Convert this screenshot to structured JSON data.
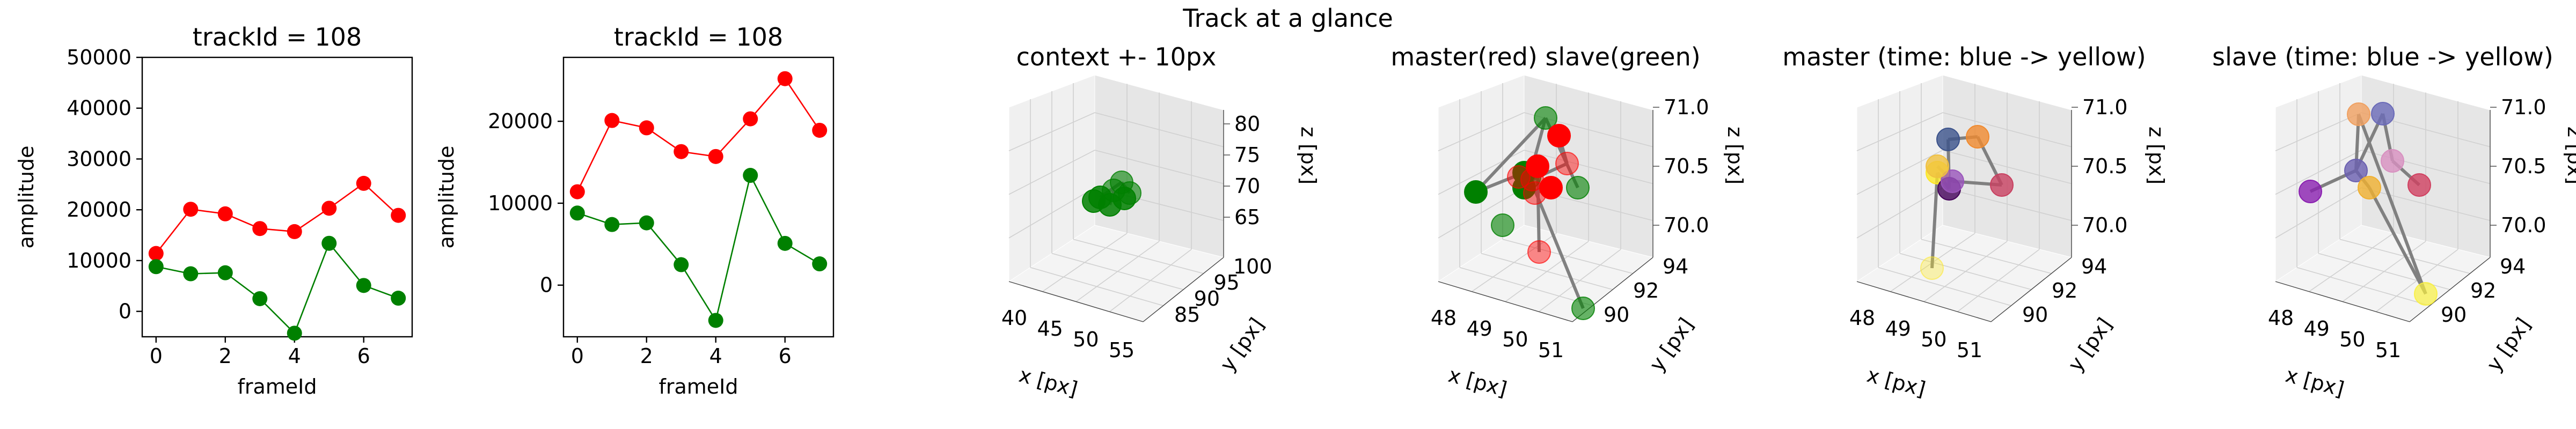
{
  "suptitle": "Track at a glance",
  "chart_data": [
    {
      "type": "line",
      "title": "trackId = 108",
      "xlabel": "frameId",
      "ylabel": "amplitude",
      "x": [
        0,
        1,
        2,
        3,
        4,
        5,
        6,
        7
      ],
      "xlim": [
        -0.4,
        7.4
      ],
      "ylim": [
        -5000,
        50000
      ],
      "xticks": [
        0,
        2,
        4,
        6
      ],
      "yticks": [
        0,
        10000,
        20000,
        30000,
        40000,
        50000
      ],
      "series": [
        {
          "color": "#ff0000",
          "values": [
            11400,
            20100,
            19200,
            16300,
            15700,
            20300,
            25200,
            18900
          ]
        },
        {
          "color": "#008000",
          "values": [
            8800,
            7400,
            7600,
            2500,
            -4300,
            13400,
            5100,
            2600
          ]
        }
      ]
    },
    {
      "type": "line",
      "title": "trackId = 108",
      "xlabel": "frameId",
      "ylabel": "amplitude",
      "x": [
        0,
        1,
        2,
        3,
        4,
        5,
        6,
        7
      ],
      "xlim": [
        -0.4,
        7.4
      ],
      "ylim": [
        -6300,
        27800
      ],
      "xticks": [
        0,
        2,
        4,
        6
      ],
      "yticks": [
        0,
        10000,
        20000
      ],
      "series": [
        {
          "color": "#ff0000",
          "values": [
            11400,
            20100,
            19200,
            16300,
            15700,
            20300,
            25200,
            18900
          ]
        },
        {
          "color": "#008000",
          "values": [
            8800,
            7400,
            7600,
            2500,
            -4300,
            13400,
            5100,
            2600
          ]
        }
      ]
    },
    {
      "type": "scatter",
      "title": "context +- 10px",
      "xlabel": "x [px]",
      "ylabel": "y [px]",
      "zlabel": "z [px]",
      "xticks": [
        "40",
        "45",
        "50",
        "55"
      ],
      "yticks": [
        "85",
        "90",
        "95",
        "100"
      ],
      "zticks": [
        "65",
        "70",
        "75",
        "80"
      ],
      "points_color": "#008000"
    },
    {
      "type": "scatter",
      "title": "master(red) slave(green)",
      "xlabel": "x [px]",
      "ylabel": "y [px]",
      "zlabel": "z [px]",
      "xticks": [
        "48",
        "49",
        "50",
        "51"
      ],
      "yticks": [
        "90",
        "92",
        "94"
      ],
      "zticks": [
        "70.0",
        "70.5",
        "71.0"
      ],
      "legend": [
        "master",
        "slave"
      ],
      "colors": [
        "#ff0000",
        "#008000"
      ]
    },
    {
      "type": "scatter",
      "title": "master (time: blue -> yellow)",
      "xlabel": "x [px]",
      "ylabel": "y [px]",
      "zlabel": "z [px]",
      "xticks": [
        "48",
        "49",
        "50",
        "51"
      ],
      "yticks": [
        "90",
        "92",
        "94"
      ],
      "zticks": [
        "70.0",
        "70.5",
        "71.0"
      ],
      "colormap": [
        "#44015a",
        "#3b528b",
        "#21908d",
        "#5dc963",
        "#fde725"
      ]
    },
    {
      "type": "scatter",
      "title": "slave (time: blue -> yellow)",
      "xlabel": "x [px]",
      "ylabel": "y [px]",
      "zlabel": "z [px]",
      "xticks": [
        "48",
        "49",
        "50",
        "51"
      ],
      "yticks": [
        "90",
        "92",
        "94"
      ],
      "zticks": [
        "70.0",
        "70.5",
        "71.0"
      ],
      "colormap": [
        "#44015a",
        "#3b528b",
        "#21908d",
        "#5dc963",
        "#fde725"
      ]
    }
  ]
}
